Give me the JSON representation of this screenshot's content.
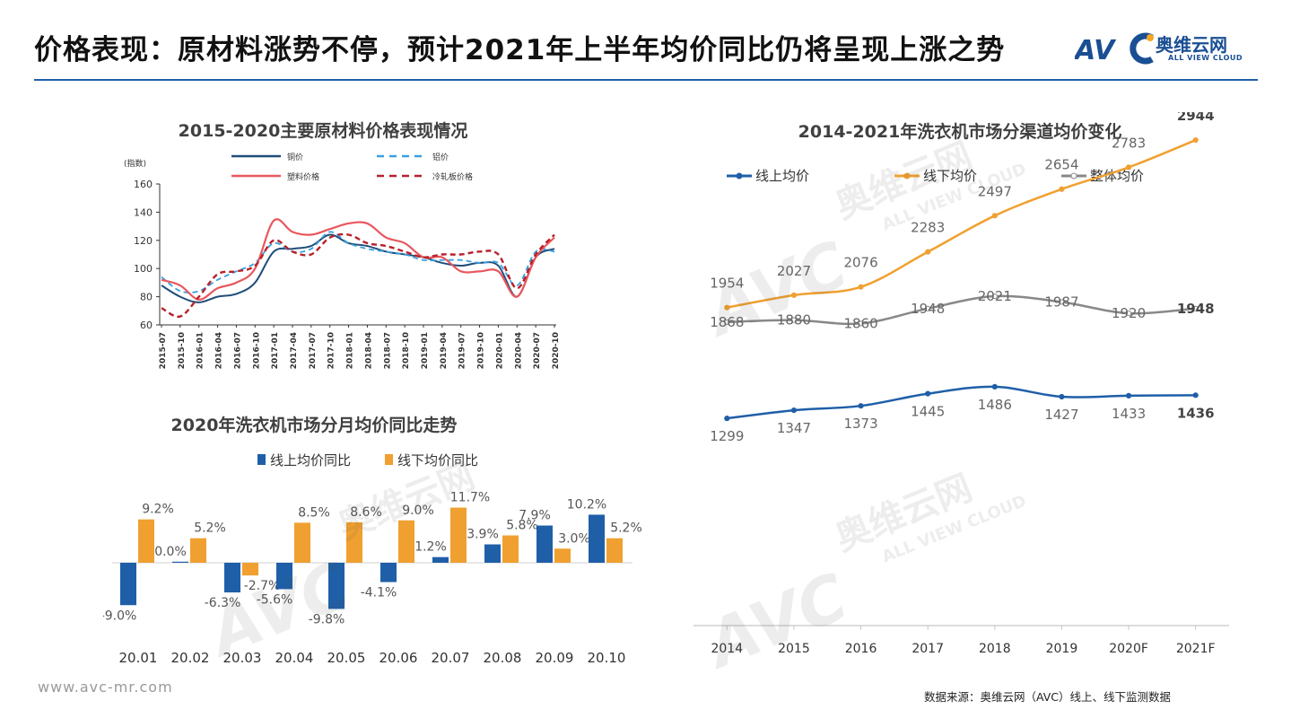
{
  "header": {
    "title": "价格表现：原材料涨势不停，预计2021年上半年均价同比仍将呈现上涨之势",
    "logo_cn": "奥维云网",
    "logo_en": "ALL VIEW CLOUD"
  },
  "footer": {
    "url": "www.avc-mr.com",
    "source": "数据来源：奥维云网（AVC）线上、线下监测数据"
  },
  "watermark": {
    "brand": "AVC",
    "cn": "奥维云网",
    "en": "ALL VIEW CLOUD"
  },
  "colors": {
    "accent": "#1f5fa8",
    "online": "#1f5fa8",
    "offline": "#f0a030",
    "overall": "#888888",
    "copper": "#1f4e79",
    "aluminum": "#3aa0e0",
    "plastic": "#e8575d",
    "steel": "#b8202a"
  },
  "chart_data": [
    {
      "type": "line",
      "title": "2015-2020主要原材料价格表现情况",
      "ylabel": "(指数)",
      "ylim": [
        60,
        160
      ],
      "yticks": [
        "160",
        "140",
        "120",
        "100",
        "80",
        "60"
      ],
      "x": [
        "2015-07",
        "2015-10",
        "2016-01",
        "2016-04",
        "2016-07",
        "2016-10",
        "2017-01",
        "2017-04",
        "2017-07",
        "2017-10",
        "2018-01",
        "2018-04",
        "2018-07",
        "2018-10",
        "2019-01",
        "2019-04",
        "2019-07",
        "2019-10",
        "2020-01",
        "2020-04",
        "2020-07",
        "2020-10"
      ],
      "legend_position": "top",
      "series": [
        {
          "name": "铜价",
          "style": "solid",
          "values": [
            88,
            80,
            76,
            80,
            82,
            90,
            112,
            114,
            116,
            124,
            118,
            116,
            112,
            110,
            108,
            104,
            102,
            104,
            102,
            80,
            108,
            114
          ]
        },
        {
          "name": "铝价",
          "style": "dashed",
          "values": [
            94,
            84,
            84,
            92,
            98,
            104,
            118,
            112,
            114,
            126,
            118,
            114,
            112,
            110,
            106,
            106,
            106,
            104,
            104,
            88,
            112,
            112
          ]
        },
        {
          "name": "塑料价格",
          "style": "solid",
          "values": [
            92,
            88,
            78,
            86,
            90,
            100,
            134,
            126,
            124,
            128,
            132,
            132,
            122,
            118,
            108,
            108,
            98,
            98,
            98,
            80,
            108,
            122
          ]
        },
        {
          "name": "冷轧板价格",
          "style": "dashed",
          "values": [
            72,
            66,
            80,
            96,
            98,
            102,
            120,
            112,
            110,
            122,
            124,
            118,
            116,
            112,
            108,
            110,
            110,
            112,
            110,
            86,
            110,
            124
          ]
        }
      ]
    },
    {
      "type": "bar",
      "title": "2020年洗衣机市场分月均价同比走势",
      "categories": [
        "20.01",
        "20.02",
        "20.03",
        "20.04",
        "20.05",
        "20.06",
        "20.07",
        "20.08",
        "20.09",
        "20.10"
      ],
      "legend_position": "top",
      "series": [
        {
          "name": "线上均价同比",
          "values": [
            -9.0,
            0.0,
            -6.3,
            -5.6,
            -9.8,
            -4.1,
            1.2,
            3.9,
            7.9,
            10.2
          ],
          "labels": [
            "-9.0%",
            "0.0%",
            "-6.3%",
            "-5.6%",
            "-9.8%",
            "-4.1%",
            "1.2%",
            "3.9%",
            "7.9%",
            "10.2%"
          ]
        },
        {
          "name": "线下均价同比",
          "values": [
            9.2,
            5.2,
            -2.7,
            8.5,
            8.6,
            9.0,
            11.7,
            5.8,
            3.0,
            5.2
          ],
          "labels": [
            "9.2%",
            "5.2%",
            "-2.7%",
            "8.5%",
            "8.6%",
            "9.0%",
            "11.7%",
            "5.8%",
            "3.0%",
            "5.2%"
          ]
        }
      ]
    },
    {
      "type": "line",
      "title": "2014-2021年洗衣机市场分渠道均价变化",
      "categories": [
        "2014",
        "2015",
        "2016",
        "2017",
        "2018",
        "2019",
        "2020F",
        "2021F"
      ],
      "legend_position": "top",
      "series": [
        {
          "name": "线上均价",
          "values": [
            1299,
            1347,
            1373,
            1445,
            1486,
            1427,
            1433,
            1436
          ],
          "labels": [
            "1299",
            "1347",
            "1373",
            "1445",
            "1486",
            "1427",
            "1433",
            "1436"
          ]
        },
        {
          "name": "线下均价",
          "values": [
            1954,
            2027,
            2076,
            2283,
            2497,
            2654,
            2783,
            2944
          ],
          "labels": [
            "1954",
            "2027",
            "2076",
            "2283",
            "2497",
            "2654",
            "2783",
            "2944"
          ]
        },
        {
          "name": "整体均价",
          "values": [
            1868,
            1880,
            1860,
            1948,
            2021,
            1987,
            1920,
            1948
          ],
          "labels": [
            "1868",
            "1880",
            "1860",
            "1948",
            "2021",
            "1987",
            "1920",
            "1948"
          ]
        }
      ]
    }
  ]
}
